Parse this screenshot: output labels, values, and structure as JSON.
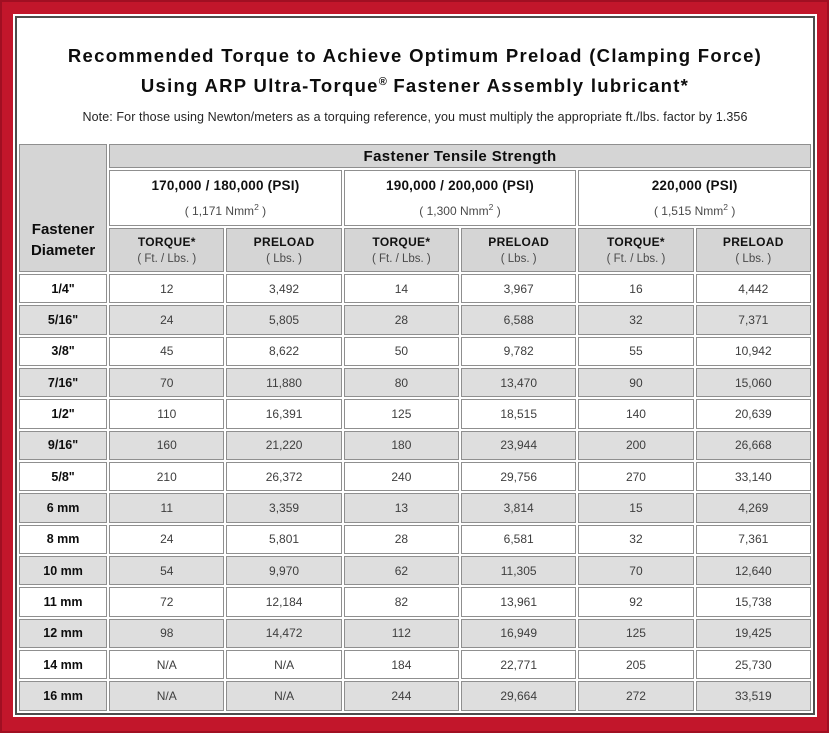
{
  "title": {
    "line1": "Recommended Torque to Achieve Optimum Preload (Clamping Force)",
    "line2_pre": "Using ARP Ultra-Torque",
    "line2_sup": "®",
    "line2_post": " Fastener Assembly lubricant*",
    "note": "Note: For those using Newton/meters as a torquing reference, you must multiply the appropriate ft./lbs. factor by 1.356"
  },
  "colors": {
    "frame_red": "#c2162b",
    "panel_border": "#4d4d4d",
    "header_gray": "#d5d5d5",
    "stripe_gray": "#dedede",
    "cell_border": "#8f8f8f"
  },
  "table": {
    "main_header": "Fastener Tensile Strength",
    "diameter_header": {
      "line1": "Fastener",
      "line2": "Diameter"
    },
    "strength_groups": [
      {
        "psi": "170,000 / 180,000 (PSI)",
        "nmm_pre": "( 1,171 Nmm",
        "nmm_sup": "2",
        "nmm_post": " )"
      },
      {
        "psi": "190,000 / 200,000 (PSI)",
        "nmm_pre": "( 1,300 Nmm",
        "nmm_sup": "2",
        "nmm_post": " )"
      },
      {
        "psi": "220,000 (PSI)",
        "nmm_pre": "( 1,515 Nmm",
        "nmm_sup": "2",
        "nmm_post": " )"
      }
    ],
    "col_headers": {
      "torque_label": "TORQUE*",
      "torque_unit": "( Ft. / Lbs. )",
      "preload_label": "PRELOAD",
      "preload_unit": "( Lbs. )"
    },
    "rows": [
      {
        "diameter": "1/4\"",
        "values": [
          "12",
          "3,492",
          "14",
          "3,967",
          "16",
          "4,442"
        ]
      },
      {
        "diameter": "5/16\"",
        "values": [
          "24",
          "5,805",
          "28",
          "6,588",
          "32",
          "7,371"
        ]
      },
      {
        "diameter": "3/8\"",
        "values": [
          "45",
          "8,622",
          "50",
          "9,782",
          "55",
          "10,942"
        ]
      },
      {
        "diameter": "7/16\"",
        "values": [
          "70",
          "11,880",
          "80",
          "13,470",
          "90",
          "15,060"
        ]
      },
      {
        "diameter": "1/2\"",
        "values": [
          "110",
          "16,391",
          "125",
          "18,515",
          "140",
          "20,639"
        ]
      },
      {
        "diameter": "9/16\"",
        "values": [
          "160",
          "21,220",
          "180",
          "23,944",
          "200",
          "26,668"
        ]
      },
      {
        "diameter": "5/8\"",
        "values": [
          "210",
          "26,372",
          "240",
          "29,756",
          "270",
          "33,140"
        ]
      },
      {
        "diameter": "6 mm",
        "values": [
          "11",
          "3,359",
          "13",
          "3,814",
          "15",
          "4,269"
        ]
      },
      {
        "diameter": "8 mm",
        "values": [
          "24",
          "5,801",
          "28",
          "6,581",
          "32",
          "7,361"
        ]
      },
      {
        "diameter": "10 mm",
        "values": [
          "54",
          "9,970",
          "62",
          "11,305",
          "70",
          "12,640"
        ]
      },
      {
        "diameter": "11 mm",
        "values": [
          "72",
          "12,184",
          "82",
          "13,961",
          "92",
          "15,738"
        ]
      },
      {
        "diameter": "12 mm",
        "values": [
          "98",
          "14,472",
          "112",
          "16,949",
          "125",
          "19,425"
        ]
      },
      {
        "diameter": "14 mm",
        "values": [
          "N/A",
          "N/A",
          "184",
          "22,771",
          "205",
          "25,730"
        ]
      },
      {
        "diameter": "16 mm",
        "values": [
          "N/A",
          "N/A",
          "244",
          "29,664",
          "272",
          "33,519"
        ]
      }
    ]
  }
}
